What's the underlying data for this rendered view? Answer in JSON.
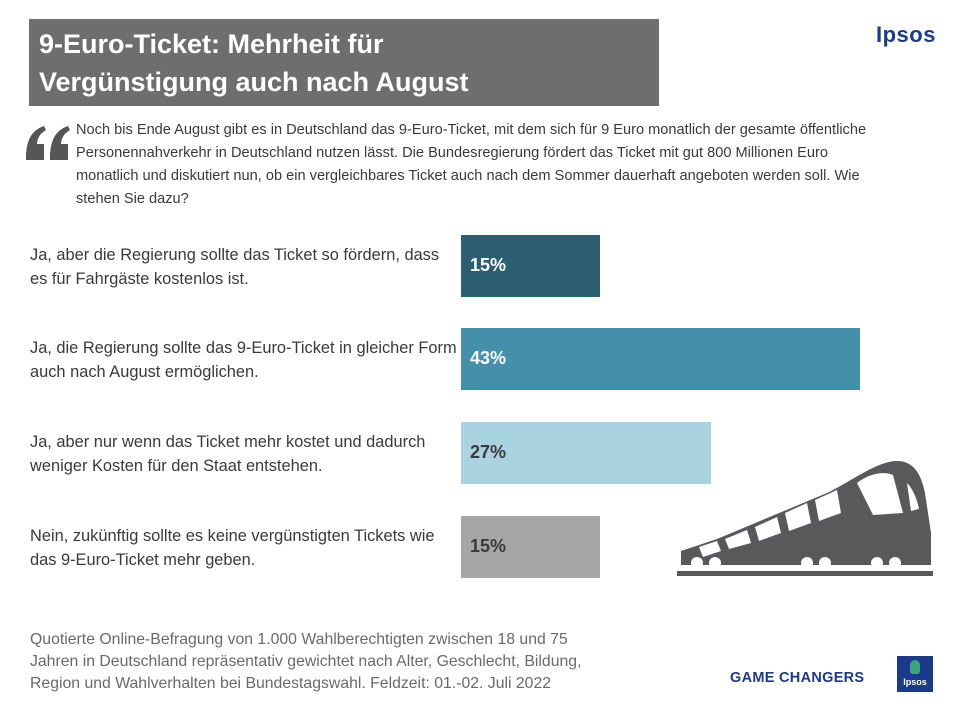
{
  "header": {
    "title": "9-Euro-Ticket: Mehrheit für\nVergünstigung auch nach August",
    "brand": "Ipsos"
  },
  "question": {
    "text": "Noch bis Ende August gibt es in Deutschland das 9-Euro-Ticket, mit dem sich für 9 Euro monatlich der gesamte öffentliche Personennahverkehr in Deutschland nutzen lässt. Die Bundesregierung fördert das Ticket mit gut 800 Millionen Euro monatlich und diskutiert nun, ob ein vergleichbares Ticket auch nach dem Sommer dauerhaft angeboten werden soll. Wie stehen Sie dazu?"
  },
  "chart_data": {
    "type": "bar",
    "orientation": "horizontal",
    "categories": [
      "Ja, aber die Regierung sollte das Ticket so fördern, dass es für Fahrgäste kostenlos ist.",
      "Ja, die Regierung sollte das 9-Euro-Ticket in gleicher Form auch nach August ermöglichen.",
      "Ja, aber nur wenn das Ticket mehr kostet und dadurch weniger Kosten für den Staat entstehen.",
      "Nein, zukünftig sollte es keine vergünstigten Tickets wie das 9-Euro-Ticket mehr geben."
    ],
    "values": [
      15,
      43,
      27,
      15
    ],
    "value_labels": [
      "15%",
      "43%",
      "27%",
      "15%"
    ],
    "colors": [
      "#2a5e70",
      "#448fa9",
      "#a9d3e0",
      "#a6a6a6"
    ],
    "label_colors": [
      "#ffffff",
      "#ffffff",
      "#3a3a3a",
      "#3a3a3a"
    ],
    "unit": "%"
  },
  "footnote": "Quotierte Online-Befragung  von 1.000 Wahlberechtigten  zwischen 18 und 75\nJahren in Deutschland repräsentativ gewichtet nach Alter, Geschlecht, Bildung,\nRegion und Wahlverhalten  bei Bundestagswahl. Feldzeit: 01.-02. Juli 2022",
  "footer": {
    "tagline": "GAME CHANGERS",
    "logo_text": "Ipsos"
  },
  "icons": {
    "quote": "quote-icon",
    "train": "train-icon"
  },
  "brand_color": "#1b3a8c"
}
